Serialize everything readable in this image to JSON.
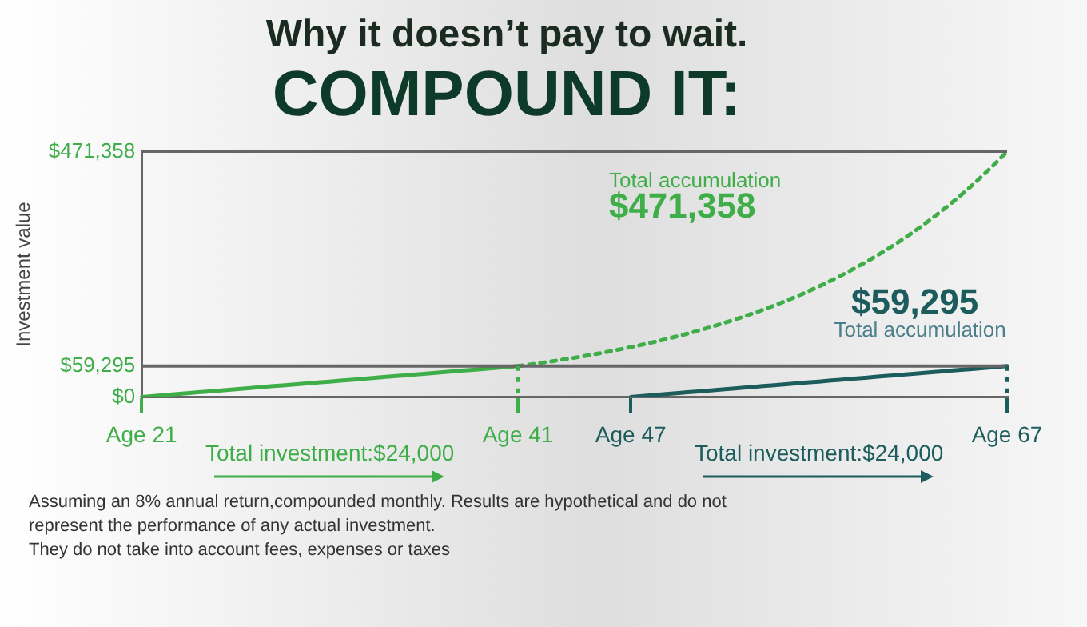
{
  "chart_data": {
    "type": "line",
    "title": "Why it doesn’t pay to wait.",
    "subtitle": "COMPOUND IT:",
    "ylabel": "Investment value",
    "categories": [
      "Age 21",
      null,
      null,
      null,
      null,
      null,
      null,
      null,
      null,
      null,
      null,
      null,
      null,
      null,
      null,
      null,
      null,
      null,
      null,
      null,
      "Age 41",
      null,
      null,
      null,
      null,
      null,
      "Age 47",
      null,
      null,
      null,
      null,
      null,
      null,
      null,
      null,
      null,
      null,
      null,
      null,
      null,
      null,
      null,
      null,
      null,
      null,
      null,
      "Age 67"
    ],
    "ylim": [
      0,
      471358
    ],
    "yticks": [
      {
        "value": 0,
        "label": "$0"
      },
      {
        "value": 59295,
        "label": "$59,295"
      },
      {
        "value": 471358,
        "label": "$471,358"
      }
    ],
    "series": [
      {
        "type": "line",
        "color": "#3fae49",
        "line_style": "solid",
        "values": [
          0,
          3000,
          5900,
          8900,
          11900,
          14800,
          17800,
          20800,
          23700,
          26700,
          29600,
          32600,
          35600,
          38500,
          41500,
          44500,
          47400,
          50400,
          53400,
          56300,
          59295,
          null,
          null,
          null,
          null,
          null,
          null,
          null,
          null,
          null,
          null,
          null,
          null,
          null,
          null,
          null,
          null,
          null,
          null,
          null,
          null,
          null,
          null,
          null,
          null,
          null,
          null
        ]
      },
      {
        "type": "line",
        "color": "#3fae49",
        "line_style": "dotted",
        "values": [
          null,
          null,
          null,
          null,
          null,
          null,
          null,
          null,
          null,
          null,
          null,
          null,
          null,
          null,
          null,
          null,
          null,
          null,
          null,
          null,
          59295,
          64200,
          69600,
          75300,
          81600,
          88400,
          95700,
          103700,
          112300,
          121600,
          131700,
          142600,
          154500,
          167300,
          181200,
          196200,
          212500,
          230200,
          249300,
          270000,
          292400,
          316700,
          343000,
          371500,
          402300,
          435700,
          471358
        ]
      },
      {
        "type": "line",
        "color": "#1d5c5c",
        "line_style": "solid",
        "values": [
          null,
          null,
          null,
          null,
          null,
          null,
          null,
          null,
          null,
          null,
          null,
          null,
          null,
          null,
          null,
          null,
          null,
          null,
          null,
          null,
          null,
          null,
          null,
          null,
          null,
          null,
          0,
          3000,
          5900,
          8900,
          11900,
          14800,
          17800,
          20800,
          23700,
          26700,
          29600,
          32600,
          35600,
          38500,
          41500,
          44500,
          47400,
          50400,
          53400,
          56300,
          59295
        ]
      }
    ],
    "ref_lines": [
      {
        "axis": "y",
        "value": 59295,
        "color": "#666666",
        "line_style": "solid"
      },
      {
        "axis": "x",
        "value": "Age 41",
        "color": "#3fae49",
        "line_style": "dotted"
      },
      {
        "axis": "x",
        "value": "Age 67",
        "color": "#1d5c5c",
        "line_style": "dotted"
      }
    ],
    "annotations": [
      "Total accumulation",
      "$471,358",
      "$59,295",
      "Total accumulation",
      "Total investment:$24,000",
      "Total investment:$24,000",
      "Assuming an 8% annual return,compounded monthly. Results are hypothetical and do not represent the performance of any actual investment.",
      "They do not take into account fees, expenses or taxes"
    ],
    "marker": "none",
    "grid": false
  }
}
